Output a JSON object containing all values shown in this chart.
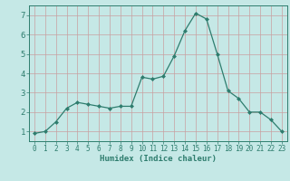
{
  "x": [
    0,
    1,
    2,
    3,
    4,
    5,
    6,
    7,
    8,
    9,
    10,
    11,
    12,
    13,
    14,
    15,
    16,
    17,
    18,
    19,
    20,
    21,
    22,
    23
  ],
  "y": [
    0.9,
    1.0,
    1.5,
    2.2,
    2.5,
    2.4,
    2.3,
    2.2,
    2.3,
    2.3,
    3.8,
    3.7,
    3.85,
    4.9,
    6.2,
    7.1,
    6.8,
    5.0,
    3.1,
    2.7,
    2.0,
    2.0,
    1.6,
    1.0
  ],
  "line_color": "#2e7d6e",
  "marker": "D",
  "marker_size": 2.0,
  "bg_color": "#c5e8e6",
  "grid_color": "#c8a0a0",
  "xlabel": "Humidex (Indice chaleur)",
  "xlim": [
    -0.5,
    23.5
  ],
  "ylim": [
    0.5,
    7.5
  ],
  "yticks": [
    1,
    2,
    3,
    4,
    5,
    6,
    7
  ],
  "xticks": [
    0,
    1,
    2,
    3,
    4,
    5,
    6,
    7,
    8,
    9,
    10,
    11,
    12,
    13,
    14,
    15,
    16,
    17,
    18,
    19,
    20,
    21,
    22,
    23
  ],
  "figsize": [
    3.2,
    2.0
  ],
  "dpi": 100
}
